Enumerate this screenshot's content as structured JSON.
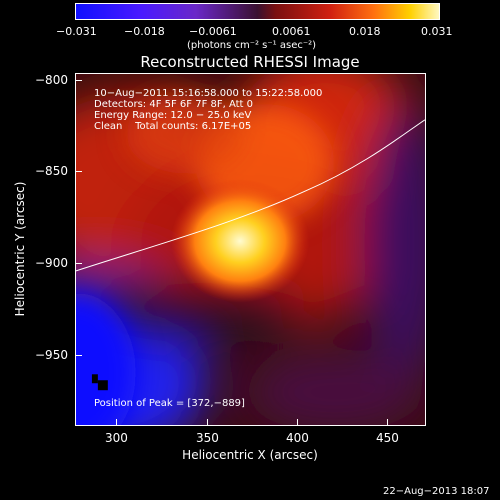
{
  "colorbar": {
    "tick_labels": [
      "−0.031",
      "−0.018",
      "−0.0061",
      "0.0061",
      "0.018",
      "0.031"
    ],
    "units_label": "(photons cm⁻² s⁻¹ asec⁻²)"
  },
  "plot": {
    "title": "Reconstructed RHESSI Image",
    "xlabel": "Heliocentric X (arcsec)",
    "ylabel": "Heliocentric Y (arcsec)",
    "x_ticks": [
      "300",
      "350",
      "400",
      "450"
    ],
    "y_ticks": [
      "−800",
      "−850",
      "−900",
      "−950"
    ],
    "x_range": [
      278,
      470
    ],
    "y_range": [
      -988,
      -796
    ],
    "info_lines": [
      "10−Aug−2011 15:16:58.000 to 15:22:58.000",
      "Detectors: 4F 5F 6F 7F 8F, Att 0",
      "Energy Range: 12.0 − 25.0 keV",
      "Clean    Total counts: 6.17E+05"
    ],
    "peak_label": "Position of Peak = [372,−889]"
  },
  "footer": {
    "timestamp": "22−Aug−2013 18:07"
  }
}
